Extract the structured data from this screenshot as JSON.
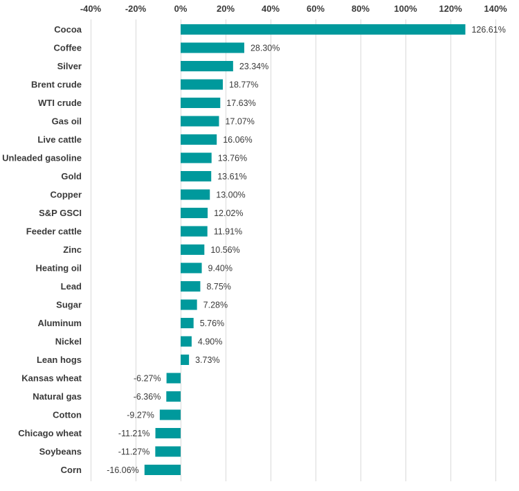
{
  "chart_data": {
    "type": "bar",
    "orientation": "horizontal",
    "title": "",
    "xlabel": "",
    "ylabel": "",
    "xlim": [
      -40,
      140
    ],
    "x_ticks": [
      -40,
      -20,
      0,
      20,
      40,
      60,
      80,
      100,
      120,
      140
    ],
    "x_tick_labels": [
      "-40%",
      "-20%",
      "0%",
      "20%",
      "40%",
      "60%",
      "80%",
      "100%",
      "120%",
      "140%"
    ],
    "x_axis_position": "top",
    "grid": true,
    "legend": "none",
    "bar_color": "#00999c",
    "categories": [
      "Cocoa",
      "Coffee",
      "Silver",
      "Brent crude",
      "WTI crude",
      "Gas oil",
      "Live cattle",
      "Unleaded gasoline",
      "Gold",
      "Copper",
      "S&P GSCI",
      "Feeder cattle",
      "Zinc",
      "Heating oil",
      "Lead",
      "Sugar",
      "Aluminum",
      "Nickel",
      "Lean hogs",
      "Kansas wheat",
      "Natural gas",
      "Cotton",
      "Chicago wheat",
      "Soybeans",
      "Corn"
    ],
    "values": [
      126.61,
      28.3,
      23.34,
      18.77,
      17.63,
      17.07,
      16.06,
      13.76,
      13.61,
      13.0,
      12.02,
      11.91,
      10.56,
      9.4,
      8.75,
      7.28,
      5.76,
      4.9,
      3.73,
      -6.27,
      -6.36,
      -9.27,
      -11.21,
      -11.27,
      -16.06
    ],
    "data_labels": [
      "126.61%",
      "28.30%",
      "23.34%",
      "18.77%",
      "17.63%",
      "17.07%",
      "16.06%",
      "13.76%",
      "13.61%",
      "13.00%",
      "12.02%",
      "11.91%",
      "10.56%",
      "9.40%",
      "8.75%",
      "7.28%",
      "5.76%",
      "4.90%",
      "3.73%",
      "-6.27%",
      "-6.36%",
      "-9.27%",
      "-11.21%",
      "-11.27%",
      "-16.06%"
    ]
  }
}
